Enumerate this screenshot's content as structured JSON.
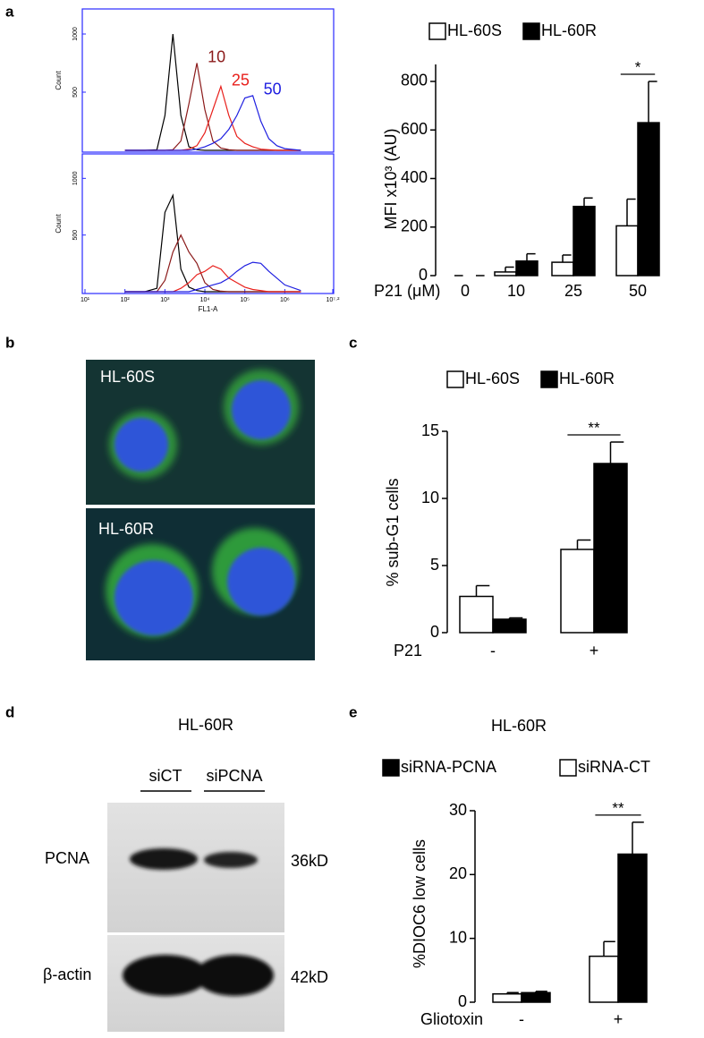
{
  "figure": {
    "panel_labels": [
      "a",
      "b",
      "c",
      "d",
      "e"
    ],
    "microscopy": {
      "labels": [
        "HL-60S",
        "HL-60R"
      ]
    },
    "blot": {
      "title": "HL-60R",
      "lanes": [
        "siCT",
        "siPCNA"
      ],
      "proteins": [
        "PCNA",
        "β-actin"
      ],
      "sizes": [
        "36kD",
        "42kD"
      ]
    }
  },
  "chart_data": [
    {
      "type": "line",
      "xscale": "log",
      "ylabel": "Count",
      "frame_color": "#2a2aff",
      "x": [
        100,
        316,
        631,
        1000,
        1585,
        2512,
        3981,
        6310,
        10000,
        15849,
        25119,
        39811,
        63096,
        100000,
        158489,
        251189,
        398107,
        630957,
        1000000,
        2511886
      ],
      "xlim": [
        10,
        15848932
      ],
      "ylim": [
        0,
        1200
      ],
      "yticks": [
        500,
        1000
      ],
      "series": [
        {
          "color": "#000000",
          "values": [
            0,
            0,
            5,
            300,
            1000,
            300,
            30,
            5,
            0,
            0,
            0,
            0,
            0,
            0,
            0,
            0,
            0,
            0,
            0,
            0
          ]
        },
        {
          "color": "#8b1a1a",
          "label": "10",
          "values": [
            0,
            0,
            0,
            0,
            5,
            80,
            400,
            750,
            350,
            80,
            20,
            5,
            0,
            0,
            0,
            0,
            0,
            0,
            0,
            0
          ]
        },
        {
          "color": "#e8201c",
          "label": "25",
          "values": [
            0,
            0,
            0,
            0,
            0,
            0,
            10,
            40,
            150,
            350,
            550,
            300,
            120,
            60,
            30,
            10,
            5,
            0,
            0,
            0
          ]
        },
        {
          "color": "#2020e0",
          "label": "50",
          "values": [
            0,
            0,
            0,
            0,
            0,
            0,
            0,
            10,
            30,
            60,
            100,
            180,
            300,
            450,
            470,
            250,
            100,
            40,
            15,
            0
          ]
        }
      ]
    },
    {
      "type": "line",
      "xscale": "log",
      "ylabel": "Count",
      "xlabel": "FL1-A",
      "frame_color": "#2a2aff",
      "x": [
        100,
        316,
        631,
        1000,
        1585,
        2512,
        3981,
        6310,
        10000,
        15849,
        25119,
        39811,
        63096,
        100000,
        158489,
        251189,
        398107,
        630957,
        1000000,
        2511886
      ],
      "xlim": [
        10,
        15848932
      ],
      "xticks": [
        {
          "value": 10,
          "label": "10¹"
        },
        {
          "value": 100,
          "label": "10²"
        },
        {
          "value": 1000,
          "label": "10³"
        },
        {
          "value": 10000,
          "label": "10⁴"
        },
        {
          "value": 100000,
          "label": "10⁵"
        },
        {
          "value": 1000000,
          "label": "10⁶"
        },
        {
          "value": 15848932,
          "label": "10⁷·²"
        }
      ],
      "ylim": [
        0,
        1200
      ],
      "yticks": [
        500,
        1000
      ],
      "series": [
        {
          "color": "#000000",
          "values": [
            0,
            0,
            30,
            700,
            850,
            200,
            40,
            10,
            0,
            0,
            0,
            0,
            0,
            0,
            0,
            0,
            0,
            0,
            0,
            0
          ]
        },
        {
          "color": "#8b1a1a",
          "values": [
            0,
            0,
            0,
            100,
            350,
            500,
            350,
            250,
            80,
            20,
            5,
            0,
            0,
            0,
            0,
            0,
            0,
            0,
            0,
            0
          ]
        },
        {
          "color": "#e8201c",
          "values": [
            0,
            0,
            0,
            0,
            0,
            30,
            80,
            150,
            180,
            230,
            200,
            120,
            80,
            40,
            20,
            10,
            0,
            0,
            0,
            0
          ]
        },
        {
          "color": "#2020e0",
          "values": [
            0,
            0,
            0,
            0,
            0,
            0,
            0,
            20,
            40,
            60,
            80,
            120,
            180,
            230,
            260,
            250,
            180,
            120,
            60,
            10
          ]
        }
      ]
    },
    {
      "type": "bar",
      "ylabel": "MFI x10³ (AU)",
      "xlabel": "P21 (μM)",
      "categories": [
        "0",
        "10",
        "25",
        "50"
      ],
      "ylim": [
        0,
        870
      ],
      "yticks": [
        0,
        200,
        400,
        600,
        800
      ],
      "significance": [
        null,
        null,
        null,
        "*"
      ],
      "series": [
        {
          "name": "HL-60S",
          "color": "#ffffff",
          "values": [
            0,
            15,
            55,
            205
          ],
          "errors": [
            0,
            20,
            30,
            110
          ]
        },
        {
          "name": "HL-60R",
          "color": "#000000",
          "values": [
            0,
            60,
            285,
            630
          ],
          "errors": [
            0,
            30,
            35,
            170
          ]
        }
      ]
    },
    {
      "type": "bar",
      "ylabel": "% sub-G1 cells",
      "xlabel": "P21",
      "categories": [
        "-",
        "+"
      ],
      "ylim": [
        0,
        15
      ],
      "yticks": [
        0,
        5,
        10,
        15
      ],
      "significance": [
        null,
        "**"
      ],
      "series": [
        {
          "name": "HL-60S",
          "color": "#ffffff",
          "values": [
            2.7,
            6.2
          ],
          "errors": [
            0.8,
            0.7
          ]
        },
        {
          "name": "HL-60R",
          "color": "#000000",
          "values": [
            1,
            12.6
          ],
          "errors": [
            0.1,
            1.6
          ]
        }
      ]
    },
    {
      "type": "bar",
      "title": "HL-60R",
      "ylabel": "%DIOC6 low cells",
      "xlabel": "Gliotoxin",
      "categories": [
        "-",
        "+"
      ],
      "ylim": [
        0,
        30
      ],
      "yticks": [
        0,
        10,
        20,
        30
      ],
      "significance": [
        null,
        "**"
      ],
      "legend_reversed": true,
      "series": [
        {
          "name": "siRNA-CT",
          "color": "#ffffff",
          "values": [
            1.3,
            7.2
          ],
          "errors": [
            0.2,
            2.3
          ]
        },
        {
          "name": "siRNA-PCNA",
          "color": "#000000",
          "values": [
            1.5,
            23.2
          ],
          "errors": [
            0.2,
            5
          ]
        }
      ]
    }
  ]
}
